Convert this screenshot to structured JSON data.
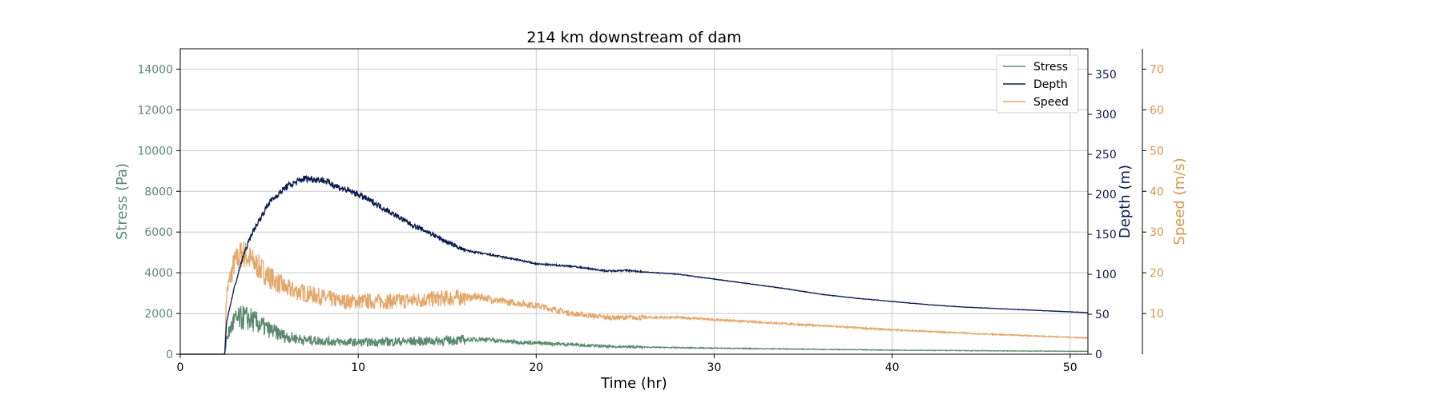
{
  "chart_data": {
    "type": "line",
    "title": "214 km downstream of dam",
    "xlabel": "Time (hr)",
    "xlim": [
      0,
      51
    ],
    "xticks": [
      0,
      10,
      20,
      30,
      40,
      50
    ],
    "grid": true,
    "legend_position": "top-right",
    "axes": {
      "stress": {
        "label": "Stress (Pa)",
        "color": "#5b8a6e",
        "ylim": [
          0,
          15000
        ],
        "ticks": [
          0,
          2000,
          4000,
          6000,
          8000,
          10000,
          12000,
          14000
        ]
      },
      "depth": {
        "label": "Depth (m)",
        "color": "#0d1b4f",
        "ylim": [
          0,
          382
        ],
        "ticks": [
          0,
          50,
          100,
          150,
          200,
          250,
          300,
          350
        ]
      },
      "speed": {
        "label": "Speed (m/s)",
        "color": "#d9964a",
        "ylim": [
          0,
          75
        ],
        "ticks": [
          10,
          20,
          30,
          40,
          50,
          60,
          70
        ]
      }
    },
    "series": [
      {
        "name": "Stress",
        "axis": "stress",
        "color": "#5b8a6e",
        "noise": 0.35,
        "x": [
          0,
          2.5,
          2.6,
          3.0,
          3.5,
          4.0,
          5.0,
          6.0,
          7.0,
          8.0,
          9.0,
          10.0,
          12.0,
          14.0,
          16.0,
          17.0,
          18.0,
          20.0,
          22.0,
          24.0,
          26.0,
          28.0,
          30.0,
          35.0,
          40.0,
          45.0,
          51.0
        ],
        "y": [
          0,
          0,
          800,
          1600,
          1800,
          1700,
          1200,
          850,
          700,
          650,
          600,
          580,
          620,
          650,
          700,
          750,
          650,
          550,
          480,
          380,
          350,
          320,
          300,
          250,
          200,
          170,
          140
        ]
      },
      {
        "name": "Depth",
        "axis": "depth",
        "color": "#0d1b4f",
        "noise": 0.02,
        "x": [
          0,
          2.5,
          2.6,
          3.0,
          3.5,
          4.0,
          4.5,
          5.0,
          6.0,
          7.0,
          8.0,
          9.0,
          10.0,
          11.0,
          12.0,
          13.0,
          14.0,
          15.0,
          16.0,
          17.0,
          18.0,
          19.0,
          20.0,
          22.0,
          23.0,
          24.0,
          25.0,
          26.0,
          28.0,
          30.0,
          32.0,
          34.0,
          36.0,
          38.0,
          40.0,
          42.0,
          44.0,
          46.0,
          48.0,
          50.0,
          51.0
        ],
        "y": [
          0,
          0,
          40,
          80,
          120,
          150,
          170,
          190,
          210,
          220,
          218,
          208,
          200,
          188,
          175,
          162,
          152,
          140,
          130,
          126,
          122,
          118,
          113,
          110,
          107,
          104,
          105,
          103,
          100,
          94,
          88,
          82,
          75,
          70,
          66,
          62,
          59,
          57,
          55,
          53,
          52
        ]
      },
      {
        "name": "Speed",
        "axis": "speed",
        "color": "#e3a86b",
        "noise": 0.15,
        "x": [
          0,
          2.5,
          2.6,
          3.0,
          3.5,
          4.0,
          5.0,
          6.0,
          7.0,
          8.0,
          9.0,
          10.0,
          12.0,
          14.0,
          16.0,
          17.0,
          18.0,
          20.0,
          22.0,
          24.0,
          26.0,
          28.0,
          30.0,
          32.0,
          34.0,
          36.0,
          38.0,
          40.0,
          45.0,
          51.0
        ],
        "y": [
          0,
          0,
          15,
          22,
          25,
          23,
          19,
          16,
          15,
          14,
          13,
          13,
          13,
          13.5,
          14,
          14,
          13,
          12,
          10,
          9,
          9,
          9,
          8.5,
          8,
          7.5,
          7,
          6.5,
          6,
          5,
          4
        ]
      }
    ]
  }
}
